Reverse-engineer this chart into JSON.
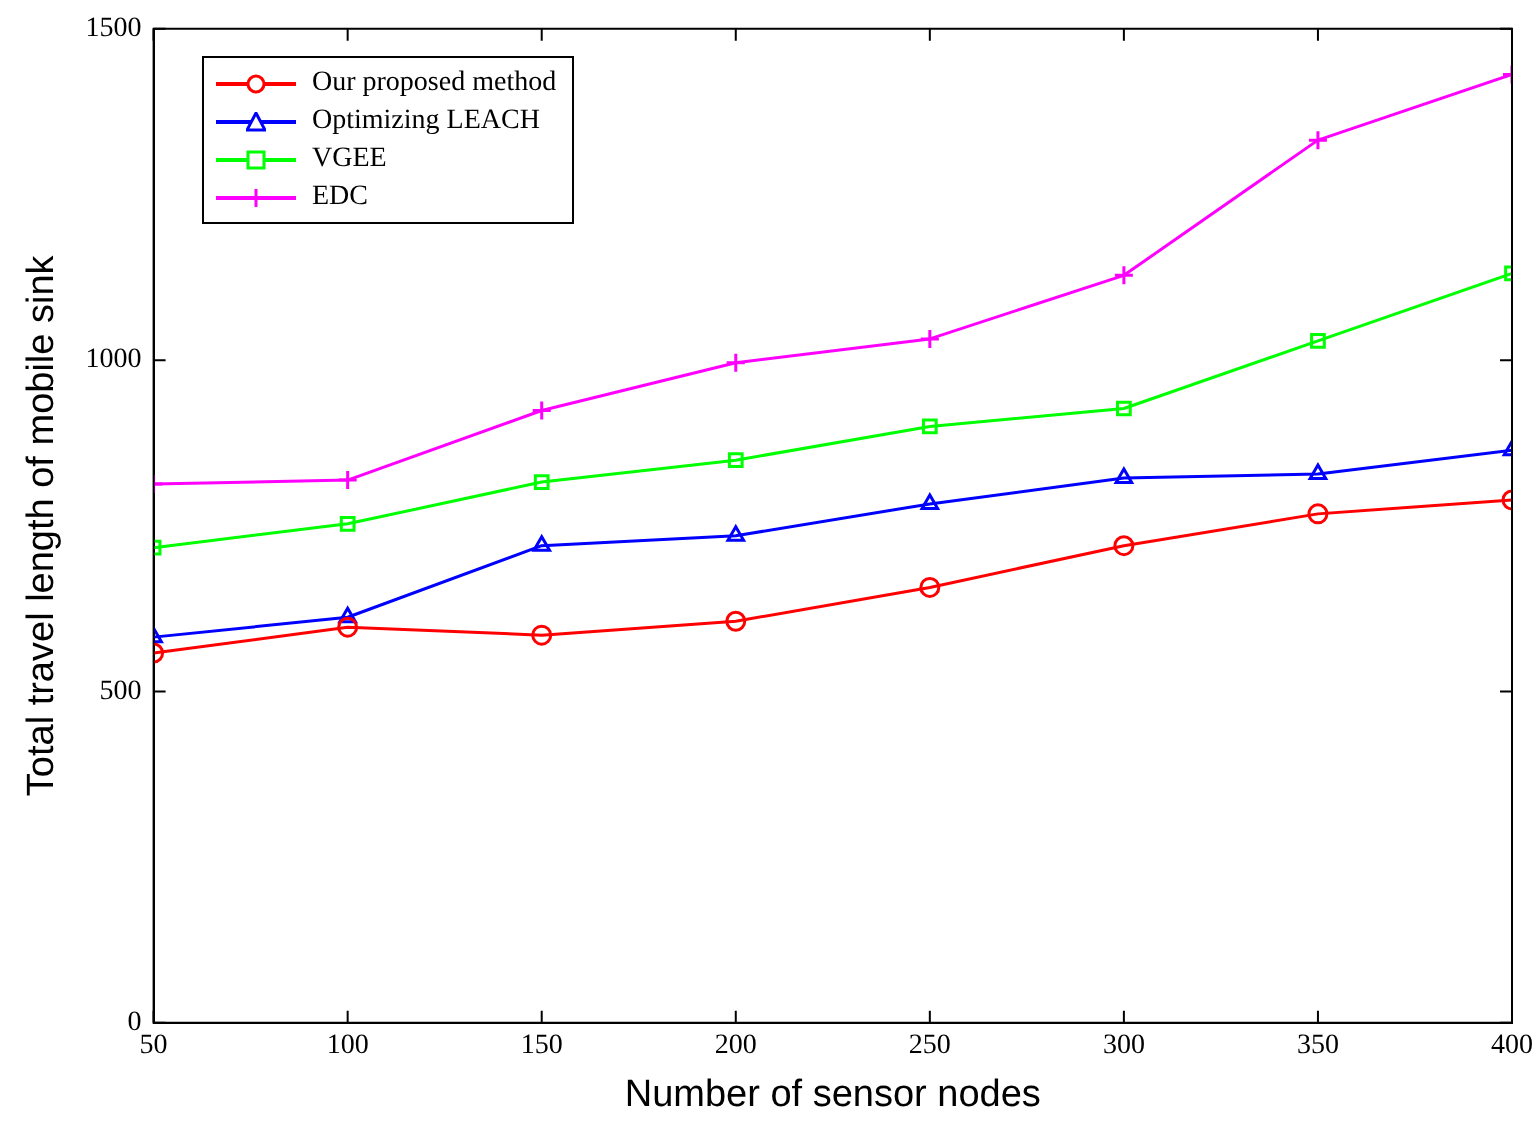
{
  "chart_data": {
    "type": "line",
    "xlabel": "Number of sensor nodes",
    "ylabel": "Total travel length of mobile sink",
    "x": [
      50,
      100,
      150,
      200,
      250,
      300,
      350,
      400
    ],
    "xlim": [
      50,
      400
    ],
    "xticks": [
      50,
      100,
      150,
      200,
      250,
      300,
      350,
      400
    ],
    "ylim": [
      0,
      1500
    ],
    "yticks": [
      0,
      500,
      1000,
      1500
    ],
    "grid": false,
    "legend": "top left",
    "line_style": "solid",
    "series": [
      {
        "name": "Our proposed method",
        "color": "#ff0000",
        "marker": "circle",
        "values": [
          558,
          597,
          585,
          606,
          657,
          720,
          768,
          789
        ]
      },
      {
        "name": "Optimizing LEACH",
        "color": "#0000ff",
        "marker": "triangle",
        "values": [
          582,
          612,
          720,
          735,
          783,
          822,
          828,
          864
        ]
      },
      {
        "name": "VGEE",
        "color": "#00ff00",
        "marker": "square",
        "values": [
          717,
          753,
          816,
          849,
          900,
          927,
          1029,
          1131
        ]
      },
      {
        "name": "EDC",
        "color": "#ff00ff",
        "marker": "cross",
        "values": [
          813,
          819,
          924,
          996,
          1032,
          1128,
          1332,
          1431
        ]
      }
    ]
  }
}
